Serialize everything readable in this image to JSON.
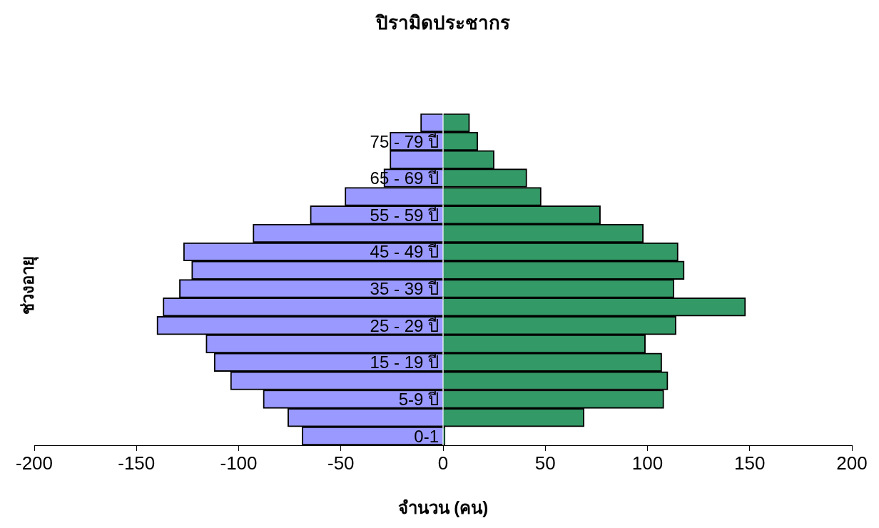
{
  "chart_data": {
    "type": "bar",
    "orientation": "horizontal",
    "stacked": true,
    "title": "ปิรามิดประชากร",
    "xlabel": "จำนวน (คน)",
    "ylabel": "ช่วงอายุ",
    "categories": [
      null,
      "75 - 79 ปี",
      null,
      "65 - 69 ปี",
      null,
      "55 - 59 ปี",
      null,
      "45 - 49 ปี",
      null,
      "35 - 39 ปี",
      null,
      "25 - 29 ปี",
      null,
      "15 - 19 ปี",
      null,
      "5-9 ปี",
      null,
      "0-1"
    ],
    "series": [
      {
        "color": "#9999ff",
        "values": [
          -11,
          -26,
          -26,
          -29,
          -48,
          -65,
          -93,
          -127,
          -123,
          -129,
          -137,
          -140,
          -116,
          -112,
          -104,
          -88,
          -76,
          -69
        ]
      },
      {
        "color": "#339966",
        "values": [
          13,
          17,
          25,
          41,
          48,
          77,
          98,
          115,
          118,
          113,
          148,
          114,
          99,
          107,
          110,
          108,
          69,
          1
        ]
      }
    ],
    "xlim": [
      -200,
      200
    ],
    "xticks": [
      -200,
      -150,
      -100,
      -50,
      0,
      50,
      100,
      150,
      200
    ],
    "grid": false,
    "legend": false
  }
}
